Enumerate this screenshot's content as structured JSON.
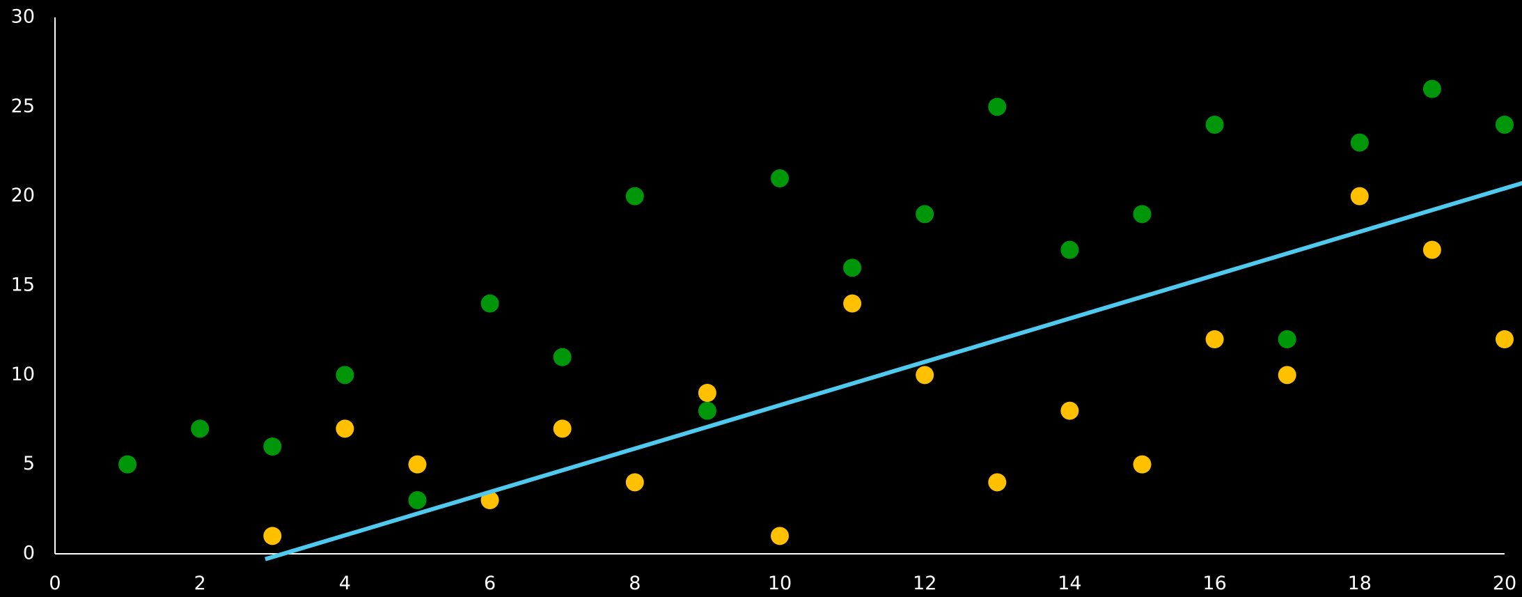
{
  "chart_data": {
    "type": "scatter",
    "title": "",
    "xlabel": "",
    "ylabel": "",
    "xlim": [
      0,
      20
    ],
    "ylim": [
      0,
      30
    ],
    "x_ticks": [
      0,
      2,
      4,
      6,
      8,
      10,
      12,
      14,
      16,
      18,
      20
    ],
    "y_ticks": [
      0,
      5,
      10,
      15,
      20,
      25,
      30
    ],
    "grid": false,
    "colors": {
      "background": "#000000",
      "axis": "#ffffff",
      "tick_label": "#ffffff",
      "trendline": "#4fc9ee"
    },
    "series": [
      {
        "color": "#00960a",
        "points": [
          [
            1,
            5
          ],
          [
            2,
            7
          ],
          [
            3,
            6
          ],
          [
            4,
            10
          ],
          [
            5,
            3
          ],
          [
            6,
            14
          ],
          [
            7,
            11
          ],
          [
            8,
            20
          ],
          [
            9,
            8
          ],
          [
            10,
            21
          ],
          [
            11,
            16
          ],
          [
            12,
            19
          ],
          [
            13,
            25
          ],
          [
            14,
            17
          ],
          [
            15,
            19
          ],
          [
            16,
            24
          ],
          [
            17,
            12
          ],
          [
            18,
            23
          ],
          [
            19,
            26
          ],
          [
            20,
            24
          ]
        ]
      },
      {
        "color": "#ffc000",
        "points": [
          [
            3,
            1
          ],
          [
            4,
            7
          ],
          [
            5,
            5
          ],
          [
            6,
            3
          ],
          [
            7,
            7
          ],
          [
            8,
            4
          ],
          [
            9,
            9
          ],
          [
            10,
            1
          ],
          [
            11,
            14
          ],
          [
            12,
            10
          ],
          [
            13,
            4
          ],
          [
            14,
            8
          ],
          [
            15,
            5
          ],
          [
            16,
            12
          ],
          [
            17,
            10
          ],
          [
            18,
            20
          ],
          [
            19,
            17
          ],
          [
            20,
            12
          ]
        ]
      }
    ],
    "trendline": {
      "type": "linear",
      "points": [
        [
          2.9,
          -0.3
        ],
        [
          20.3,
          20.8
        ]
      ]
    }
  }
}
